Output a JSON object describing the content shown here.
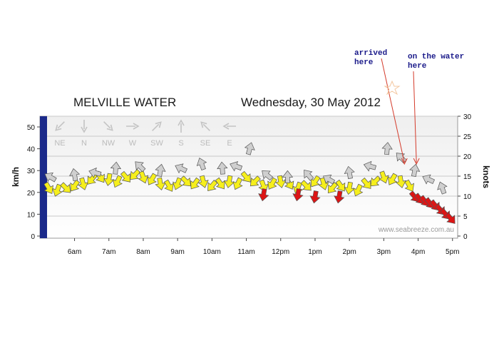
{
  "chart_data": {
    "type": "scatter",
    "title": "MELVILLE WATER",
    "date": "Wednesday, 30 May 2012",
    "ylabel_left": "km/h",
    "ylabel_right": "knots",
    "ylim_left": [
      0,
      55
    ],
    "ylim_right": [
      0,
      30
    ],
    "yticks_left": [
      "0",
      "10",
      "20",
      "30",
      "40",
      "50"
    ],
    "yticks_right": [
      "0",
      "5",
      "10",
      "15",
      "20",
      "25",
      "30"
    ],
    "xticks": [
      "6am",
      "7am",
      "8am",
      "9am",
      "10am",
      "11am",
      "12pm",
      "1pm",
      "2pm",
      "3pm",
      "4pm",
      "5pm"
    ],
    "direction_legend": [
      "NE",
      "N",
      "NW",
      "W",
      "SW",
      "S",
      "SE",
      "E"
    ],
    "watermark": "www.seabreeze.com.au",
    "series": [
      {
        "color": "#f6ef1c",
        "x": [
          5.25,
          5.5,
          5.75,
          6.0,
          6.25,
          6.5,
          6.75,
          7.0,
          7.25,
          7.5,
          7.75,
          8.0,
          8.25,
          8.5,
          8.75,
          9.0,
          9.25,
          9.5,
          9.75,
          10.0,
          10.25,
          10.5,
          10.75,
          11.0,
          11.25,
          11.5,
          11.75,
          12.0,
          12.25,
          12.5,
          12.75,
          13.0,
          13.25,
          13.5,
          13.75,
          14.0,
          14.25,
          14.5,
          14.75,
          15.0,
          15.25,
          15.5,
          15.75
        ],
        "y": [
          22,
          21,
          22,
          23,
          24,
          26,
          27,
          26,
          25,
          27,
          28,
          27,
          26,
          24,
          23,
          24,
          25,
          24,
          25,
          23,
          24,
          25,
          24,
          27,
          25,
          23,
          24,
          25,
          24,
          22,
          23,
          25,
          24,
          22,
          23,
          22,
          21,
          24,
          25,
          27,
          26,
          25,
          23
        ]
      },
      {
        "color": "#dd1515",
        "x": [
          11.5,
          12.5,
          13.0,
          13.7,
          15.9,
          16.05,
          16.2,
          16.35,
          16.5,
          16.65,
          16.8,
          16.95
        ],
        "y": [
          19,
          19,
          18,
          18,
          18,
          17,
          16,
          15,
          14,
          12,
          10,
          8
        ]
      },
      {
        "color": "#cfcfcf",
        "x": [
          5.3,
          6.0,
          6.6,
          7.2,
          7.9,
          8.5,
          9.1,
          9.7,
          10.3,
          10.7,
          11.1,
          11.6,
          12.2,
          12.8,
          13.4,
          14.0,
          14.6,
          15.1,
          15.5,
          15.9,
          16.3,
          16.7
        ],
        "y": [
          27,
          28,
          29,
          31,
          32,
          30,
          31,
          33,
          31,
          32,
          40,
          28,
          27,
          28,
          26,
          29,
          32,
          40,
          36,
          30,
          26,
          22
        ]
      }
    ],
    "annotations": [
      {
        "text": [
          "arrived",
          "here"
        ],
        "x": 15.6
      },
      {
        "text": [
          "on the water",
          "here"
        ],
        "x": 15.95
      }
    ]
  }
}
